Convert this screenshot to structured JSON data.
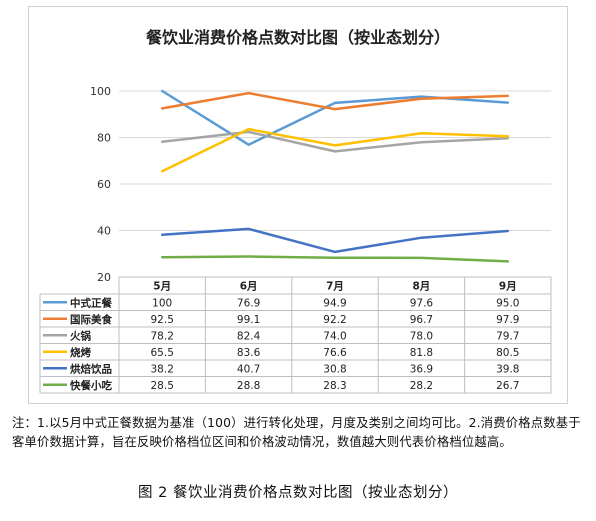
{
  "chart_data": {
    "type": "line",
    "title": "餐饮业消费价格点数对比图（按业态划分）",
    "categories": [
      "5月",
      "6月",
      "7月",
      "8月",
      "9月"
    ],
    "ylim": [
      20,
      100
    ],
    "yticks": [
      20,
      40,
      60,
      80,
      100
    ],
    "grid": true,
    "legend": "data-table",
    "series": [
      {
        "name": "中式正餐",
        "color": "#5b9bd5",
        "values": [
          100,
          76.9,
          94.9,
          97.6,
          95.0
        ],
        "labels": [
          "100",
          "76.9",
          "94.9",
          "97.6",
          "95.0"
        ]
      },
      {
        "name": "国际美食",
        "color": "#ed7d31",
        "values": [
          92.5,
          99.1,
          92.2,
          96.7,
          97.9
        ],
        "labels": [
          "92.5",
          "99.1",
          "92.2",
          "96.7",
          "97.9"
        ]
      },
      {
        "name": "火锅",
        "color": "#a5a5a5",
        "values": [
          78.2,
          82.4,
          74.0,
          78.0,
          79.7
        ],
        "labels": [
          "78.2",
          "82.4",
          "74.0",
          "78.0",
          "79.7"
        ]
      },
      {
        "name": "烧烤",
        "color": "#ffc000",
        "values": [
          65.5,
          83.6,
          76.6,
          81.8,
          80.5
        ],
        "labels": [
          "65.5",
          "83.6",
          "76.6",
          "81.8",
          "80.5"
        ]
      },
      {
        "name": "烘焙饮品",
        "color": "#4472c4",
        "values": [
          38.2,
          40.7,
          30.8,
          36.9,
          39.8
        ],
        "labels": [
          "38.2",
          "40.7",
          "30.8",
          "36.9",
          "39.8"
        ]
      },
      {
        "name": "快餐小吃",
        "color": "#70ad47",
        "values": [
          28.5,
          28.8,
          28.3,
          28.2,
          26.7
        ],
        "labels": [
          "28.5",
          "28.8",
          "28.3",
          "28.2",
          "26.7"
        ]
      }
    ]
  },
  "note": "注：1.以5月中式正餐数据为基准（100）进行转化处理，月度及类别之间均可比。2.消费价格点数基于客单价数据计算，旨在反映价格档位区间和价格波动情况，数值越大则代表价格档位越高。",
  "caption": "图 2 餐饮业消费价格点数对比图（按业态划分）"
}
